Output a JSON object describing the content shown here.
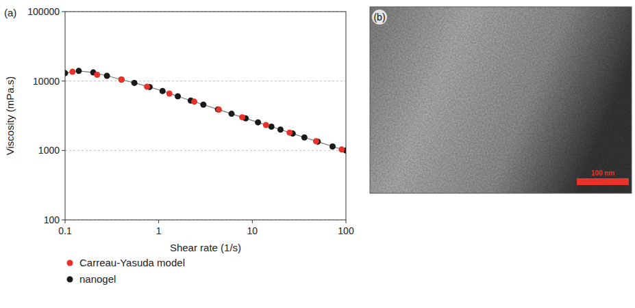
{
  "chart_data": {
    "type": "line",
    "annotations": [
      "(a)"
    ],
    "x_label": "Shear rate (1/s)",
    "y_label": "Viscosity (mPa.s)",
    "log": true,
    "grid": true,
    "legend": "bottom",
    "xlim": [
      0.1,
      100
    ],
    "xticks": [
      0.1,
      1,
      10,
      100
    ],
    "ylim": [
      100,
      100000
    ],
    "yticks": [
      100,
      1000,
      10000,
      100000
    ],
    "series": [
      {
        "name": "Carreau-Yasuda model",
        "color": "#e8332a",
        "type": "scatter",
        "marker": "circle",
        "x": [
          0.12,
          0.22,
          0.4,
          0.75,
          1.3,
          2.4,
          4.4,
          7.8,
          14,
          25,
          48,
          90
        ],
        "values": [
          13600,
          12300,
          10500,
          8300,
          6600,
          5050,
          3870,
          3010,
          2330,
          1810,
          1360,
          1035
        ]
      },
      {
        "name": "nanogel",
        "color": "#1a1a1a",
        "type": "line",
        "marker": "circle",
        "line_style": "solid",
        "x": [
          0.1,
          0.14,
          0.2,
          0.28,
          0.4,
          0.55,
          0.8,
          1.1,
          1.6,
          2.2,
          3,
          4.3,
          6,
          8.5,
          11.5,
          16,
          20,
          27,
          36,
          50,
          72,
          100
        ],
        "values": [
          13000,
          14000,
          13300,
          11900,
          10500,
          9400,
          8200,
          7190,
          6030,
          5240,
          4570,
          3910,
          3380,
          2900,
          2540,
          2200,
          2000,
          1750,
          1540,
          1340,
          1140,
          1000
        ]
      }
    ]
  },
  "image": {
    "label": "(b)",
    "scale_bar": "100 nm"
  }
}
